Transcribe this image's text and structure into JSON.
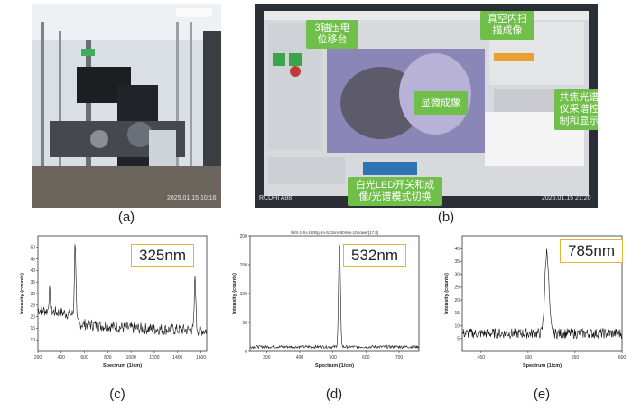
{
  "panels": {
    "a": {
      "caption": "(a)",
      "timestamp": "2025.01.15 10:16"
    },
    "b": {
      "caption": "(b)",
      "window_title": "WiS-1-Si-1800g-1s-532nm-50mm-10power[17.8]",
      "callouts": {
        "stage": "3轴压电\n位移台",
        "vacuum": "真空内扫\n描成像",
        "microscope": "显微成像",
        "spectrometer": "共焦光谱\n仪采谱控\n制和显示",
        "led": "白光LED开关和成\n像/光谱模式切换"
      },
      "cam_label": "RCDHI A88",
      "timestamp": "2025.01.15 21:20"
    },
    "c": {
      "caption": "(c)",
      "wavelength": "325nm"
    },
    "d": {
      "caption": "(d)",
      "wavelength": "532nm"
    },
    "e": {
      "caption": "(e)",
      "wavelength": "785nm"
    }
  },
  "chart_data": [
    {
      "type": "line",
      "xlabel": "Spectrum (1/cm)",
      "ylabel": "Intensity (counts)",
      "xlim": [
        200,
        1650
      ],
      "ylim": [
        5,
        55
      ],
      "xticks": [
        200,
        400,
        600,
        800,
        1000,
        1200,
        1400,
        1600
      ],
      "yticks": [
        10,
        15,
        20,
        25,
        30,
        35,
        40,
        45,
        50
      ],
      "peaks": [
        {
          "x": 300,
          "y": 31
        },
        {
          "x": 520,
          "y": 53
        },
        {
          "x": 1550,
          "y": 38
        }
      ],
      "baseline": [
        [
          200,
          23
        ],
        [
          500,
          21
        ],
        [
          540,
          17
        ],
        [
          1000,
          15
        ],
        [
          1650,
          14
        ]
      ]
    },
    {
      "type": "line",
      "title": "WiS-1-Si-1800g-1s-532nm-50mm-10power[17.8]",
      "xlabel": "Spectrum (1/cm)",
      "ylabel": "Intensity (counts)",
      "xlim": [
        250,
        760
      ],
      "ylim": [
        0,
        200
      ],
      "xticks": [
        300,
        400,
        500,
        600,
        700
      ],
      "yticks": [
        0,
        50,
        100,
        150,
        200
      ],
      "peaks": [
        {
          "x": 520,
          "y": 190
        }
      ],
      "baseline": [
        [
          250,
          8
        ],
        [
          760,
          8
        ]
      ]
    },
    {
      "type": "line",
      "xlabel": "Spectrum (1/cm)",
      "ylabel": "Intensity (counts)",
      "xlim": [
        430,
        600
      ],
      "ylim": [
        0,
        45
      ],
      "xticks": [
        450,
        500,
        550,
        600
      ],
      "yticks": [
        5,
        10,
        15,
        20,
        25,
        30,
        35,
        40
      ],
      "peaks": [
        {
          "x": 520,
          "y": 39
        }
      ],
      "baseline": [
        [
          430,
          7
        ],
        [
          600,
          7
        ]
      ]
    }
  ]
}
